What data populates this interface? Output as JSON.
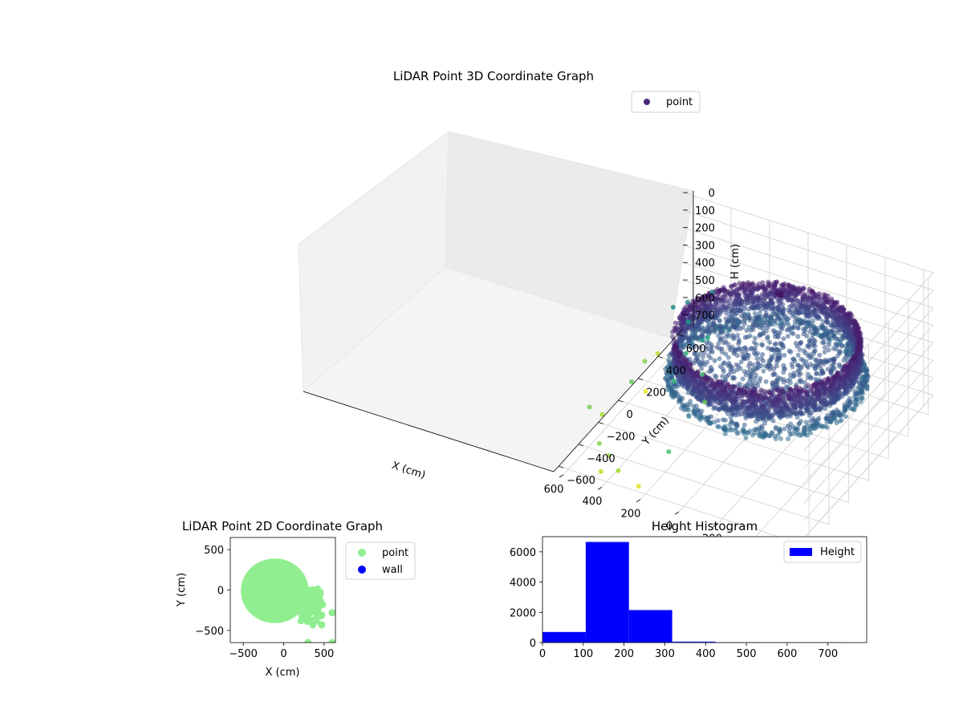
{
  "chart_data": [
    {
      "type": "scatter",
      "projection": "3d",
      "title": "LiDAR Point 3D Coordinate Graph",
      "xlabel": "X (cm)",
      "ylabel": "Y (cm)",
      "zlabel": "H (cm)",
      "x_ticks": [
        "−600",
        "−400",
        "−200",
        "0",
        "200",
        "400",
        "600"
      ],
      "y_ticks": [
        "−600",
        "−400",
        "−200",
        "0",
        "200",
        "400",
        "600"
      ],
      "z_ticks": [
        "0",
        "100",
        "200",
        "300",
        "400",
        "500",
        "600",
        "700"
      ],
      "xlim": [
        -650,
        650
      ],
      "ylim": [
        -650,
        650
      ],
      "zlim": [
        0,
        780
      ],
      "z_inverted": true,
      "legend": {
        "entries": [
          "point"
        ],
        "placement": "top-right"
      },
      "colormap": "viridis",
      "series": [
        {
          "name": "point",
          "structure": "dense cylindrical wall of points (radius ~420 cm) from H ~150 to ~350 cm, plus a floor disk",
          "outliers": [
            [
              380,
              420,
              330
            ],
            [
              460,
              330,
              360
            ],
            [
              520,
              300,
              390
            ],
            [
              430,
              280,
              430
            ],
            [
              320,
              260,
              470
            ],
            [
              370,
              140,
              500
            ],
            [
              300,
              170,
              420
            ],
            [
              260,
              90,
              550
            ],
            [
              330,
              -60,
              520
            ],
            [
              180,
              -40,
              600
            ],
            [
              550,
              -60,
              600
            ],
            [
              590,
              150,
              630
            ],
            [
              640,
              -310,
              620
            ],
            [
              610,
              320,
              700
            ],
            [
              600,
              -260,
              680
            ],
            [
              330,
              -620,
              680
            ],
            [
              410,
              -640,
              700
            ],
            [
              410,
              -560,
              660
            ],
            [
              480,
              -520,
              640
            ],
            [
              230,
              -610,
              740
            ],
            [
              120,
              -520,
              560
            ],
            [
              560,
              100,
              760
            ]
          ]
        }
      ]
    },
    {
      "type": "scatter",
      "title": "LiDAR Point 2D Coordinate Graph",
      "xlabel": "X (cm)",
      "ylabel": "Y (cm)",
      "x_ticks": [
        "−500",
        "0",
        "500"
      ],
      "y_ticks": [
        "−500",
        "0",
        "500"
      ],
      "xlim": [
        -660,
        640
      ],
      "ylim": [
        -650,
        650
      ],
      "legend": {
        "entries": [
          "point",
          "wall"
        ],
        "placement": "outside-right"
      },
      "series": [
        {
          "name": "point",
          "color": "#90ee90",
          "structure": "filled disk centered near (-100, 0) with radius ~420 cm and a lobe toward +x",
          "outliers": [
            [
              600,
              -650
            ],
            [
              470,
              -430
            ],
            [
              360,
              -430
            ],
            [
              470,
              -310
            ],
            [
              600,
              -280
            ],
            [
              450,
              -50
            ],
            [
              430,
              -120
            ],
            [
              480,
              -180
            ],
            [
              300,
              -650
            ]
          ]
        },
        {
          "name": "wall",
          "color": "#0000ff",
          "points": []
        }
      ]
    },
    {
      "type": "bar",
      "title": "Height Histogram",
      "xlabel": "",
      "ylabel": "",
      "x_ticks": [
        "0",
        "100",
        "200",
        "300",
        "400",
        "500",
        "600",
        "700"
      ],
      "y_ticks": [
        "0",
        "2000",
        "4000",
        "6000"
      ],
      "xlim": [
        0,
        795
      ],
      "ylim": [
        0,
        7000
      ],
      "bin_edges": [
        0,
        106,
        212,
        318,
        424,
        530,
        636,
        742
      ],
      "values": [
        700,
        6650,
        2150,
        60,
        10,
        5,
        3
      ],
      "legend": {
        "entries": [
          "Height"
        ],
        "placement": "top-right"
      },
      "series": [
        {
          "name": "Height",
          "color": "#0000ff"
        }
      ]
    }
  ]
}
